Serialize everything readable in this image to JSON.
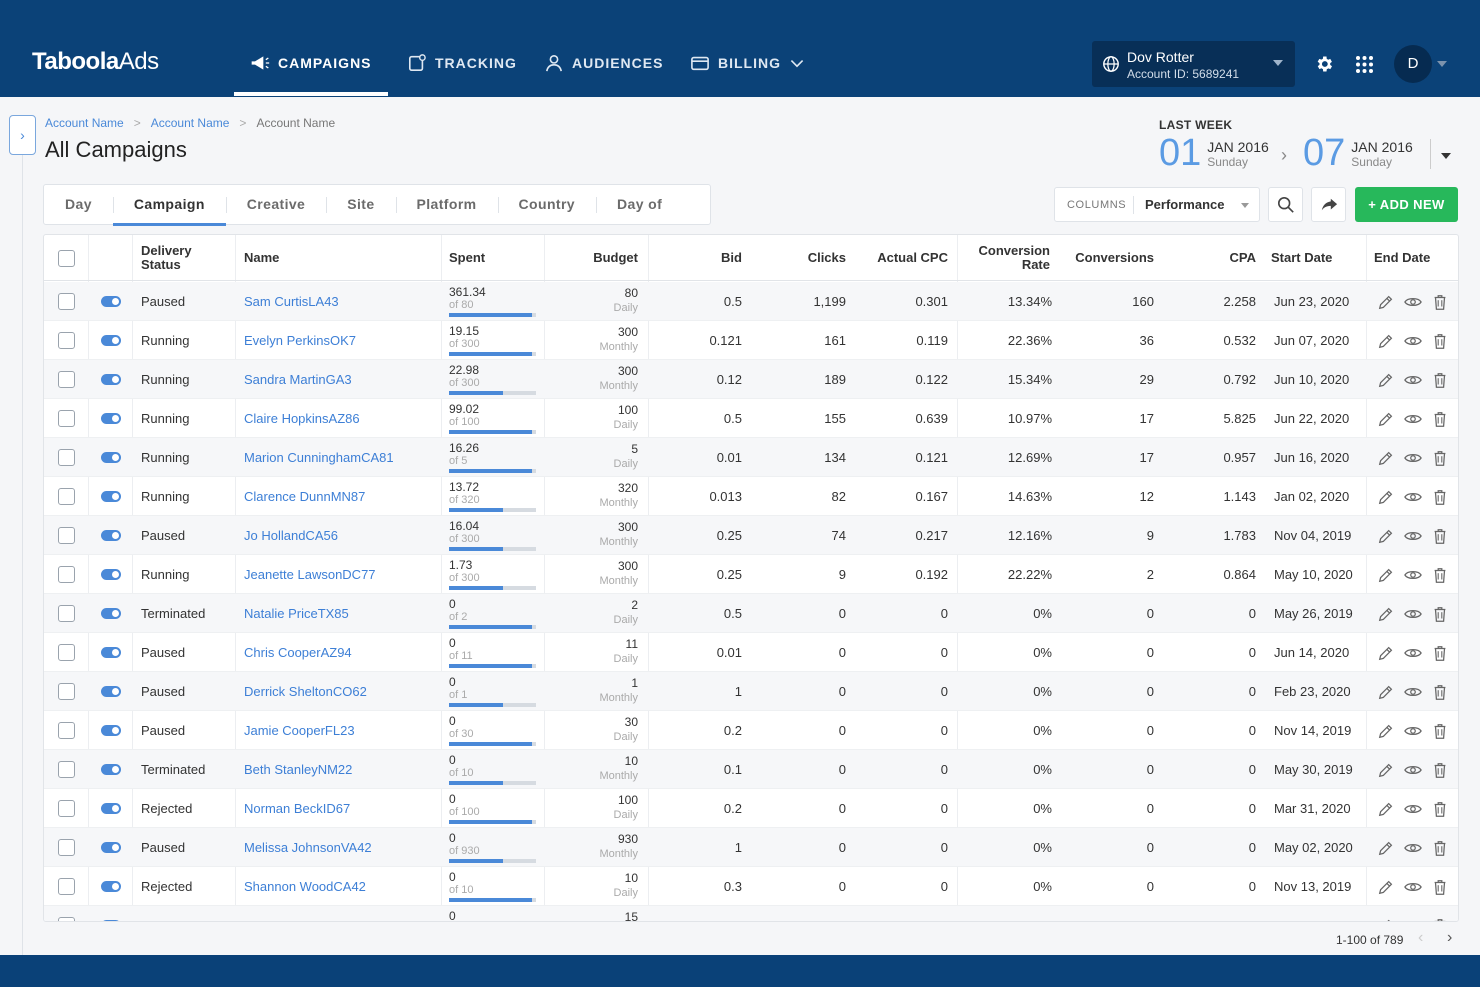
{
  "brand": {
    "logo_bold": "Taboola",
    "logo_light": "Ads"
  },
  "nav": [
    {
      "label": "CAMPAIGNS",
      "icon": "megaphone-icon",
      "active": true
    },
    {
      "label": "TRACKING",
      "icon": "tracking-icon",
      "active": false
    },
    {
      "label": "AUDIENCES",
      "icon": "user-icon",
      "active": false
    },
    {
      "label": "BILLING",
      "icon": "card-icon",
      "active": false
    }
  ],
  "account": {
    "name": "Dov Rotter",
    "id": "Account ID: 5689241"
  },
  "user": {
    "initial": "D"
  },
  "breadcrumb": [
    "Account Name",
    "Account Name",
    "Account Name"
  ],
  "page_title": "All Campaigns",
  "date_range": {
    "label": "LAST WEEK",
    "from": {
      "day": "01",
      "month": "JAN 2016",
      "dow": "Sunday"
    },
    "to": {
      "day": "07",
      "month": "JAN 2016",
      "dow": "Sunday"
    }
  },
  "tabs": [
    "Day",
    "Campaign",
    "Creative",
    "Site",
    "Platform",
    "Country",
    "Day of Week"
  ],
  "active_tab": "Campaign",
  "columns_selector": {
    "key": "COLUMNS",
    "value": "Performance"
  },
  "add_button": "+ ADD NEW",
  "headers": {
    "delivery_status": "Delivery Status",
    "name": "Name",
    "spent": "Spent",
    "budget": "Budget",
    "bid": "Bid",
    "clicks": "Clicks",
    "actual_cpc": "Actual CPC",
    "conversion_rate": "Conversion Rate",
    "conversions": "Conversions",
    "cpa": "CPA",
    "start_date": "Start Date",
    "end_date": "End Date"
  },
  "rows": [
    {
      "status": "Paused",
      "name": "Sam CurtisLA43",
      "spent": "361.34",
      "spent_of": "of 80",
      "spent_pct": 0.95,
      "budget": "80",
      "period": "Daily",
      "bid": "0.5",
      "clicks": "1,199",
      "cpc": "0.301",
      "conv_rate": "13.34%",
      "conversions": "160",
      "cpa": "2.258",
      "start": "Jun 23, 2020"
    },
    {
      "status": "Running",
      "name": "Evelyn PerkinsOK7",
      "spent": "19.15",
      "spent_of": "of 300",
      "spent_pct": 0.95,
      "budget": "300",
      "period": "Monthly",
      "bid": "0.121",
      "clicks": "161",
      "cpc": "0.119",
      "conv_rate": "22.36%",
      "conversions": "36",
      "cpa": "0.532",
      "start": "Jun 07, 2020"
    },
    {
      "status": "Running",
      "name": "Sandra MartinGA3",
      "spent": "22.98",
      "spent_of": "of 300",
      "spent_pct": 0.62,
      "budget": "300",
      "period": "Monthly",
      "bid": "0.12",
      "clicks": "189",
      "cpc": "0.122",
      "conv_rate": "15.34%",
      "conversions": "29",
      "cpa": "0.792",
      "start": "Jun 10, 2020"
    },
    {
      "status": "Running",
      "name": "Claire HopkinsAZ86",
      "spent": "99.02",
      "spent_of": "of 100",
      "spent_pct": 0.95,
      "budget": "100",
      "period": "Daily",
      "bid": "0.5",
      "clicks": "155",
      "cpc": "0.639",
      "conv_rate": "10.97%",
      "conversions": "17",
      "cpa": "5.825",
      "start": "Jun 22, 2020"
    },
    {
      "status": "Running",
      "name": "Marion CunninghamCA81",
      "spent": "16.26",
      "spent_of": "of 5",
      "spent_pct": 0.95,
      "budget": "5",
      "period": "Daily",
      "bid": "0.01",
      "clicks": "134",
      "cpc": "0.121",
      "conv_rate": "12.69%",
      "conversions": "17",
      "cpa": "0.957",
      "start": "Jun 16, 2020"
    },
    {
      "status": "Running",
      "name": "Clarence DunnMN87",
      "spent": "13.72",
      "spent_of": "of 320",
      "spent_pct": 0.62,
      "budget": "320",
      "period": "Monthly",
      "bid": "0.013",
      "clicks": "82",
      "cpc": "0.167",
      "conv_rate": "14.63%",
      "conversions": "12",
      "cpa": "1.143",
      "start": "Jan 02, 2020"
    },
    {
      "status": "Paused",
      "name": "Jo HollandCA56",
      "spent": "16.04",
      "spent_of": "of 300",
      "spent_pct": 0.62,
      "budget": "300",
      "period": "Monthly",
      "bid": "0.25",
      "clicks": "74",
      "cpc": "0.217",
      "conv_rate": "12.16%",
      "conversions": "9",
      "cpa": "1.783",
      "start": "Nov 04, 2019"
    },
    {
      "status": "Running",
      "name": "Jeanette LawsonDC77",
      "spent": "1.73",
      "spent_of": "of 300",
      "spent_pct": 0.62,
      "budget": "300",
      "period": "Monthly",
      "bid": "0.25",
      "clicks": "9",
      "cpc": "0.192",
      "conv_rate": "22.22%",
      "conversions": "2",
      "cpa": "0.864",
      "start": "May 10, 2020"
    },
    {
      "status": "Terminated",
      "name": "Natalie PriceTX85",
      "spent": "0",
      "spent_of": "of 2",
      "spent_pct": 0.95,
      "budget": "2",
      "period": "Daily",
      "bid": "0.5",
      "clicks": "0",
      "cpc": "0",
      "conv_rate": "0%",
      "conversions": "0",
      "cpa": "0",
      "start": "May 26, 2019"
    },
    {
      "status": "Paused",
      "name": "Chris CooperAZ94",
      "spent": "0",
      "spent_of": "of 11",
      "spent_pct": 0.95,
      "budget": "11",
      "period": "Daily",
      "bid": "0.01",
      "clicks": "0",
      "cpc": "0",
      "conv_rate": "0%",
      "conversions": "0",
      "cpa": "0",
      "start": "Jun 14, 2020"
    },
    {
      "status": "Paused",
      "name": "Derrick SheltonCO62",
      "spent": "0",
      "spent_of": "of 1",
      "spent_pct": 0.62,
      "budget": "1",
      "period": "Monthly",
      "bid": "1",
      "clicks": "0",
      "cpc": "0",
      "conv_rate": "0%",
      "conversions": "0",
      "cpa": "0",
      "start": "Feb 23, 2020"
    },
    {
      "status": "Paused",
      "name": "Jamie CooperFL23",
      "spent": "0",
      "spent_of": "of 30",
      "spent_pct": 0.95,
      "budget": "30",
      "period": "Daily",
      "bid": "0.2",
      "clicks": "0",
      "cpc": "0",
      "conv_rate": "0%",
      "conversions": "0",
      "cpa": "0",
      "start": "Nov 14, 2019"
    },
    {
      "status": "Terminated",
      "name": "Beth StanleyNM22",
      "spent": "0",
      "spent_of": "of 10",
      "spent_pct": 0.62,
      "budget": "10",
      "period": "Monthly",
      "bid": "0.1",
      "clicks": "0",
      "cpc": "0",
      "conv_rate": "0%",
      "conversions": "0",
      "cpa": "0",
      "start": "May 30, 2019"
    },
    {
      "status": "Rejected",
      "name": "Norman BeckID67",
      "spent": "0",
      "spent_of": "of 100",
      "spent_pct": 0.95,
      "budget": "100",
      "period": "Daily",
      "bid": "0.2",
      "clicks": "0",
      "cpc": "0",
      "conv_rate": "0%",
      "conversions": "0",
      "cpa": "0",
      "start": "Mar 31, 2020"
    },
    {
      "status": "Paused",
      "name": "Melissa JohnsonVA42",
      "spent": "0",
      "spent_of": "of 930",
      "spent_pct": 0.62,
      "budget": "930",
      "period": "Monthly",
      "bid": "1",
      "clicks": "0",
      "cpc": "0",
      "conv_rate": "0%",
      "conversions": "0",
      "cpa": "0",
      "start": "May 02, 2020"
    },
    {
      "status": "Rejected",
      "name": "Shannon WoodCA42",
      "spent": "0",
      "spent_of": "of 10",
      "spent_pct": 0.95,
      "budget": "10",
      "period": "Daily",
      "bid": "0.3",
      "clicks": "0",
      "cpc": "0",
      "conv_rate": "0%",
      "conversions": "0",
      "cpa": "0",
      "start": "Nov 13, 2019"
    },
    {
      "status": "",
      "name": "",
      "spent": "0",
      "spent_of": "",
      "spent_pct": 0,
      "budget": "15",
      "period": "",
      "bid": "",
      "clicks": "",
      "cpc": "",
      "conv_rate": "",
      "conversions": "",
      "cpa": "",
      "start": ""
    }
  ],
  "pagination": {
    "text": "1-100 of 789"
  },
  "colors": {
    "nav_bg": "#0b4278",
    "accent": "#4a89d8",
    "add_button": "#27b85b"
  }
}
